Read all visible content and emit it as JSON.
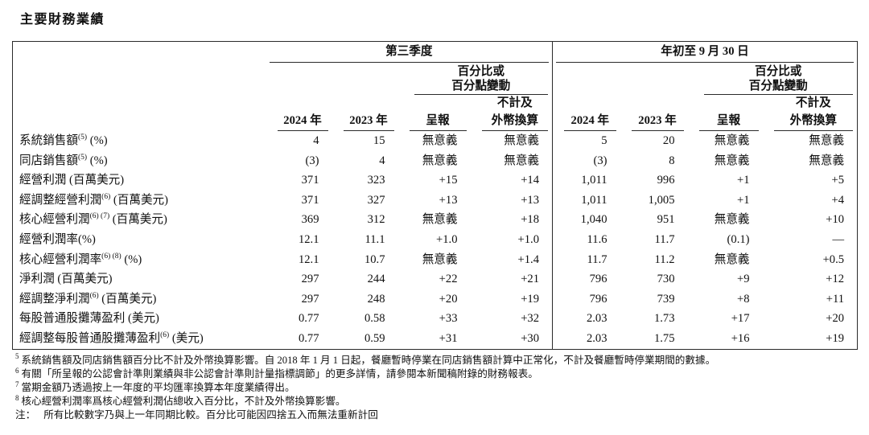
{
  "page": {
    "title": "主要財務業績"
  },
  "table": {
    "groups": {
      "q3": "第三季度",
      "ytd": "年初至 9 月 30 日"
    },
    "pct_header": {
      "line1": "百分比或",
      "line2": "百分點變動"
    },
    "excl_fx_line1": "不計及",
    "columns": {
      "y2024": "2024 年",
      "y2023": "2023 年",
      "reported": "呈報",
      "excl_fx_line2": "外幣換算"
    },
    "rows": [
      {
        "label": "系統銷售額",
        "sup": "(5)",
        "suffix": " (%)",
        "values": [
          "4",
          "15",
          "無意義",
          "無意義",
          "5",
          "20",
          "無意義",
          "無意義"
        ]
      },
      {
        "label": "同店銷售額",
        "sup": "(5)",
        "suffix": " (%)",
        "values": [
          "(3)",
          "4",
          "無意義",
          "無意義",
          "(3)",
          "8",
          "無意義",
          "無意義"
        ]
      },
      {
        "label": "經營利潤 (百萬美元)",
        "sup": "",
        "suffix": "",
        "values": [
          "371",
          "323",
          "+15",
          "+14",
          "1,011",
          "996",
          "+1",
          "+5"
        ]
      },
      {
        "label": "經調整經營利潤",
        "sup": "(6)",
        "suffix": " (百萬美元)",
        "values": [
          "371",
          "327",
          "+13",
          "+13",
          "1,011",
          "1,005",
          "+1",
          "+4"
        ]
      },
      {
        "label": "核心經營利潤",
        "sup": "(6) (7)",
        "suffix": " (百萬美元)",
        "values": [
          "369",
          "312",
          "無意義",
          "+18",
          "1,040",
          "951",
          "無意義",
          "+10"
        ]
      },
      {
        "label": "經營利潤率(%)",
        "sup": "",
        "suffix": "",
        "values": [
          "12.1",
          "11.1",
          "+1.0",
          "+1.0",
          "11.6",
          "11.7",
          "(0.1)",
          "—"
        ]
      },
      {
        "label": "核心經營利潤率",
        "sup": "(6) (8)",
        "suffix": " (%)",
        "values": [
          "12.1",
          "10.7",
          "無意義",
          "+1.4",
          "11.7",
          "11.2",
          "無意義",
          "+0.5"
        ]
      },
      {
        "label": "淨利潤 (百萬美元)",
        "sup": "",
        "suffix": "",
        "values": [
          "297",
          "244",
          "+22",
          "+21",
          "796",
          "730",
          "+9",
          "+12"
        ]
      },
      {
        "label": "經調整淨利潤",
        "sup": "(6)",
        "suffix": " (百萬美元)",
        "values": [
          "297",
          "248",
          "+20",
          "+19",
          "796",
          "739",
          "+8",
          "+11"
        ]
      },
      {
        "label": "每股普通股攤薄盈利 (美元)",
        "sup": "",
        "suffix": "",
        "values": [
          "0.77",
          "0.58",
          "+33",
          "+32",
          "2.03",
          "1.73",
          "+17",
          "+20"
        ]
      },
      {
        "label": "經調整每股普通股攤薄盈利",
        "sup": "(6)",
        "suffix": " (美元)",
        "values": [
          "0.77",
          "0.59",
          "+31",
          "+30",
          "2.03",
          "1.75",
          "+16",
          "+19"
        ]
      }
    ]
  },
  "footnotes": [
    {
      "sup": "5",
      "prefix": "",
      "text": "系統銷售額及同店銷售額百分比不計及外幣換算影響。自 2018 年 1 月 1 日起，餐廳暫時停業在同店銷售額計算中正常化，不計及餐廳暫時停業期間的數據。"
    },
    {
      "sup": "6",
      "prefix": "",
      "text": "有關「所呈報的公認會計準則業績與非公認會計準則計量指標調節」的更多詳情，請參閱本新聞稿附錄的財務報表。"
    },
    {
      "sup": "7",
      "prefix": "",
      "text": "當期金額乃透過按上一年度的平均匯率換算本年度業績得出。"
    },
    {
      "sup": "8",
      "prefix": "",
      "text": "核心經營利潤率爲核心經營利潤佔總收入百分比，不計及外幣換算影響。"
    },
    {
      "sup": "",
      "prefix": "注：",
      "text": "所有比較數字乃與上一年同期比較。百分比可能因四捨五入而無法重新計回"
    }
  ]
}
